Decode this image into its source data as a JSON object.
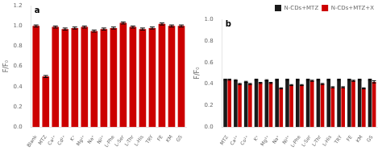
{
  "chart_data": [
    {
      "type": "bar",
      "categories": [
        "Blank",
        "MTZ",
        "Ca²⁺",
        "Cd²⁺",
        "K⁺",
        "Mg²⁺",
        "Na⁺",
        "Ni²⁺",
        "L-Phe",
        "L-Ser",
        "L-Thr",
        "L-His",
        "TRY",
        "FE",
        "KM",
        "GS"
      ],
      "values": [
        1.0,
        0.5,
        0.99,
        0.97,
        0.98,
        0.99,
        0.95,
        0.97,
        0.98,
        1.03,
        0.99,
        0.97,
        0.98,
        1.02,
        1.0,
        1.0
      ],
      "errors": [
        0.01,
        0.01,
        0.01,
        0.01,
        0.01,
        0.01,
        0.01,
        0.01,
        0.01,
        0.01,
        0.01,
        0.01,
        0.01,
        0.01,
        0.01,
        0.01
      ],
      "color": "#CC0000",
      "ylabel": "F/F₀",
      "ylim": [
        0.0,
        1.2
      ],
      "yticks": [
        {
          "value": 0.0,
          "label": "0.0"
        },
        0.2,
        0.4,
        0.6,
        0.8,
        {
          "value": 1.0,
          "label": "1.0"
        },
        1.2
      ],
      "annotations": [
        "a"
      ],
      "grid": false
    },
    {
      "type": "bar",
      "categories": [
        "MTZ",
        "Ca²⁺",
        "Co²⁺",
        "K⁺",
        "Mg²⁺",
        "Na⁺",
        "Ni²⁺",
        "L-Phe",
        "L-Ser",
        "L-Thr",
        "L-His",
        "TRY",
        "FE",
        "KM",
        "GS"
      ],
      "series": [
        {
          "name": "N-CDs+MTZ",
          "color": "#1a1a1a",
          "values": [
            0.44,
            0.435,
            0.42,
            0.44,
            0.435,
            0.44,
            0.44,
            0.44,
            0.44,
            0.44,
            0.44,
            0.44,
            0.44,
            0.44,
            0.44
          ],
          "errors": [
            0.005,
            0.005,
            0.005,
            0.005,
            0.005,
            0.005,
            0.005,
            0.005,
            0.005,
            0.005,
            0.005,
            0.005,
            0.005,
            0.005,
            0.005
          ]
        },
        {
          "name": "N-CDs+MTZ+X",
          "color": "#CC0000",
          "values": [
            0.44,
            0.4,
            0.4,
            0.41,
            0.41,
            0.36,
            0.39,
            0.39,
            0.43,
            0.4,
            0.37,
            0.37,
            0.43,
            0.36,
            0.42
          ],
          "errors": [
            0.005,
            0.005,
            0.005,
            0.005,
            0.005,
            0.005,
            0.005,
            0.005,
            0.005,
            0.005,
            0.005,
            0.005,
            0.005,
            0.005,
            0.01
          ]
        }
      ],
      "ylabel": "F/F₀",
      "ylim": [
        0.0,
        1.0
      ],
      "yticks": [
        {
          "value": 0.0,
          "label": "0.0"
        },
        0.2,
        0.4,
        0.6,
        0.8,
        {
          "value": 1.0,
          "label": "1.0"
        }
      ],
      "annotations": [
        "b"
      ],
      "legend": "upper right",
      "grid": false
    }
  ]
}
